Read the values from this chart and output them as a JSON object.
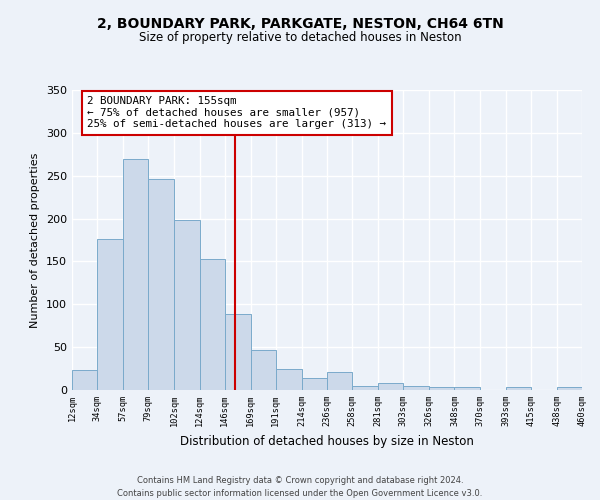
{
  "title": "2, BOUNDARY PARK, PARKGATE, NESTON, CH64 6TN",
  "subtitle": "Size of property relative to detached houses in Neston",
  "xlabel": "Distribution of detached houses by size in Neston",
  "ylabel": "Number of detached properties",
  "bin_edges": [
    12,
    34,
    57,
    79,
    102,
    124,
    146,
    169,
    191,
    214,
    236,
    258,
    281,
    303,
    326,
    348,
    370,
    393,
    415,
    438,
    460
  ],
  "bar_heights": [
    23,
    176,
    270,
    246,
    198,
    153,
    89,
    47,
    25,
    14,
    21,
    5,
    8,
    5,
    4,
    4,
    0,
    4,
    0,
    4
  ],
  "bar_facecolor": "#ccd9ea",
  "bar_edgecolor": "#7aaacb",
  "vline_x": 155,
  "vline_color": "#cc0000",
  "annotation_title": "2 BOUNDARY PARK: 155sqm",
  "annotation_line1": "← 75% of detached houses are smaller (957)",
  "annotation_line2": "25% of semi-detached houses are larger (313) →",
  "annotation_box_edgecolor": "#cc0000",
  "annotation_box_facecolor": "white",
  "tick_labels": [
    "12sqm",
    "34sqm",
    "57sqm",
    "79sqm",
    "102sqm",
    "124sqm",
    "146sqm",
    "169sqm",
    "191sqm",
    "214sqm",
    "236sqm",
    "258sqm",
    "281sqm",
    "303sqm",
    "326sqm",
    "348sqm",
    "370sqm",
    "393sqm",
    "415sqm",
    "438sqm",
    "460sqm"
  ],
  "ylim": [
    0,
    350
  ],
  "yticks": [
    0,
    50,
    100,
    150,
    200,
    250,
    300,
    350
  ],
  "footer1": "Contains HM Land Registry data © Crown copyright and database right 2024.",
  "footer2": "Contains public sector information licensed under the Open Government Licence v3.0.",
  "bg_color": "#edf2f9",
  "grid_color": "white"
}
